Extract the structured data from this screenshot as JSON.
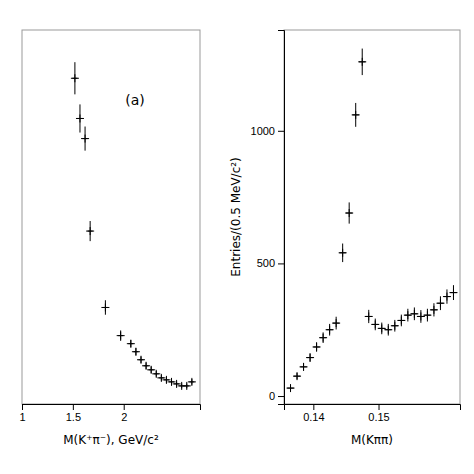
{
  "chart_data": [
    {
      "type": "scatter",
      "annotations": [
        "(a)"
      ],
      "xlabel": "M(K⁺π⁻), GeV/c²",
      "xlim": [
        1.0,
        2.75
      ],
      "ylim": [
        0.12,
        1.05
      ],
      "xticks": [
        1,
        1.5,
        2
      ],
      "tick_labels": "x",
      "marker": "plus",
      "color": "black",
      "x": [
        1.52,
        1.57,
        1.62,
        1.67,
        1.82,
        1.97,
        2.07,
        2.12,
        2.17,
        2.22,
        2.27,
        2.32,
        2.37,
        2.42,
        2.47,
        2.52,
        2.57,
        2.62,
        2.67
      ],
      "values": [
        0.93,
        0.83,
        0.78,
        0.55,
        0.36,
        0.29,
        0.27,
        0.25,
        0.23,
        0.215,
        0.205,
        0.195,
        0.185,
        0.18,
        0.175,
        0.17,
        0.165,
        0.165,
        0.175
      ],
      "xerr": [
        0.025,
        0.025,
        0.025,
        0.025,
        0.025,
        0.025,
        0.025,
        0.025,
        0.025,
        0.025,
        0.025,
        0.025,
        0.025,
        0.025,
        0.025,
        0.025,
        0.025,
        0.025,
        0.025
      ],
      "yerr": [
        0.04,
        0.035,
        0.03,
        0.025,
        0.018,
        0.013,
        0.009,
        0.009,
        0.008,
        0.008,
        0.008,
        0.007,
        0.007,
        0.007,
        0.006,
        0.006,
        0.006,
        0.006,
        0.007
      ]
    },
    {
      "type": "scatter",
      "xlabel": "M(Kππ)",
      "ylabel": "Entries/(0.5 MeV/c²)",
      "xlim": [
        0.1355,
        0.1625
      ],
      "ylim": [
        -30,
        1380
      ],
      "xticks": [
        0.14,
        0.15
      ],
      "yticks": [
        0,
        500,
        1000
      ],
      "marker": "plus",
      "color": "black",
      "x": [
        0.1365,
        0.1375,
        0.1385,
        0.1395,
        0.1405,
        0.1415,
        0.1425,
        0.1435,
        0.1445,
        0.1455,
        0.1465,
        0.1475,
        0.1485,
        0.1495,
        0.1505,
        0.1515,
        0.1525,
        0.1535,
        0.1545,
        0.1555,
        0.1565,
        0.1575,
        0.1585,
        0.1595,
        0.1605,
        0.1615
      ],
      "values": [
        30,
        75,
        110,
        145,
        185,
        220,
        250,
        275,
        540,
        690,
        1060,
        1260,
        300,
        270,
        255,
        250,
        265,
        285,
        305,
        310,
        300,
        305,
        325,
        350,
        375,
        390
      ],
      "xerr": [
        0.0005,
        0.0005,
        0.0005,
        0.0005,
        0.0005,
        0.0005,
        0.0005,
        0.0005,
        0.0005,
        0.0005,
        0.0005,
        0.0005,
        0.0005,
        0.0005,
        0.0005,
        0.0005,
        0.0005,
        0.0005,
        0.0005,
        0.0005,
        0.0005,
        0.0005,
        0.0005,
        0.0005,
        0.0005,
        0.0005
      ],
      "yerr": [
        10,
        12,
        14,
        16,
        18,
        20,
        22,
        24,
        35,
        40,
        45,
        50,
        25,
        22,
        22,
        22,
        22,
        22,
        24,
        24,
        24,
        24,
        25,
        26,
        27,
        28
      ]
    }
  ]
}
